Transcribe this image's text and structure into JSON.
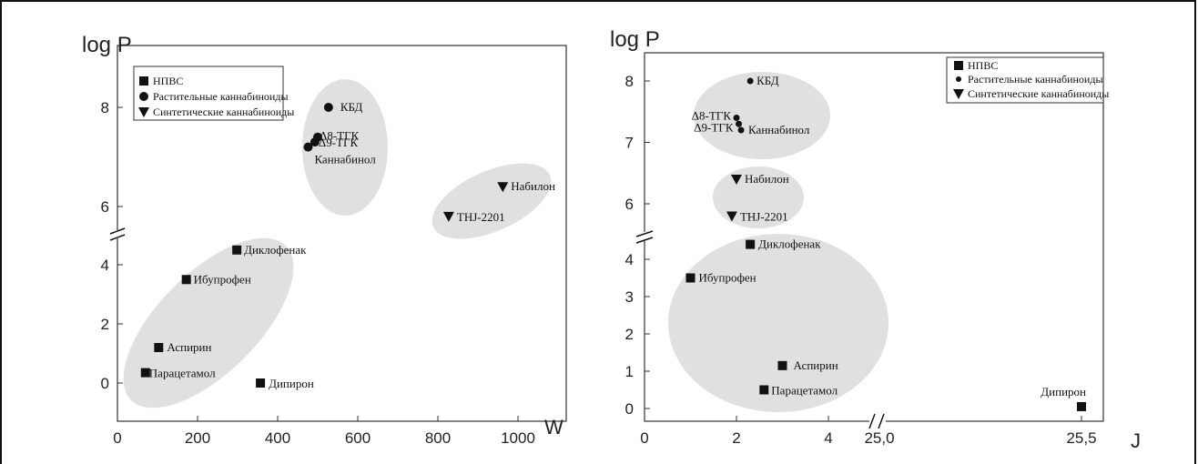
{
  "chart_data": [
    {
      "type": "scatter",
      "ylabel": "log P",
      "xlabel": "W",
      "xlim": [
        0,
        1100
      ],
      "x_ticks": [
        "0",
        "200",
        "400",
        "600",
        "800",
        "1000"
      ],
      "x_tick_values": [
        0,
        200,
        400,
        600,
        800,
        1000
      ],
      "y_ticks": [
        "0",
        "2",
        "4",
        "6",
        "8"
      ],
      "y_tick_values": [
        0,
        2,
        4,
        6,
        8
      ],
      "y_axis_break": true,
      "legend": [
        "НПВС",
        "Растительные каннабиноиды",
        "Синтетические каннабиноиды"
      ],
      "legend_position": "top-left",
      "points": [
        {
          "label": "Парацетамол",
          "x": 70,
          "y": 0.35,
          "group": "НПВС"
        },
        {
          "label": "Аспирин",
          "x": 103,
          "y": 1.2,
          "group": "НПВС"
        },
        {
          "label": "Ибупрофен",
          "x": 172,
          "y": 3.5,
          "group": "НПВС"
        },
        {
          "label": "Диклофенак",
          "x": 298,
          "y": 4.5,
          "group": "НПВС"
        },
        {
          "label": "Дипирон",
          "x": 357,
          "y": 0.0,
          "group": "НПВС"
        },
        {
          "label": "КБД",
          "x": 527,
          "y": 8.0,
          "group": "Растительные каннабиноиды"
        },
        {
          "label": "Δ8-ТГК",
          "x": 500,
          "y": 7.4,
          "group": "Растительные каннабиноиды"
        },
        {
          "label": "Δ9-ТГК",
          "x": 493,
          "y": 7.3,
          "group": "Растительные каннабиноиды"
        },
        {
          "label": "Каннабинол",
          "x": 476,
          "y": 7.2,
          "group": "Растительные каннабиноиды"
        },
        {
          "label": "Набилон",
          "x": 962,
          "y": 6.4,
          "group": "Синтетические каннабиноиды"
        },
        {
          "label": "THJ-2201",
          "x": 827,
          "y": 5.8,
          "group": "Синтетические каннабиноиды"
        }
      ]
    },
    {
      "type": "scatter",
      "ylabel": "log P",
      "xlabel": "J",
      "x_ticks": [
        "0",
        "2",
        "4",
        "25,0",
        "25,5"
      ],
      "x_axis_break": true,
      "y_ticks": [
        "0",
        "1",
        "2",
        "3",
        "4",
        "5",
        "6",
        "7",
        "8"
      ],
      "y_tick_values": [
        0,
        1,
        2,
        3,
        4,
        5,
        6,
        7,
        8
      ],
      "y_axis_break": true,
      "legend": [
        "НПВС",
        "Растительные каннабиноиды",
        "Синтетические каннабиноиды"
      ],
      "legend_position": "top-right",
      "points": [
        {
          "label": "Ибупрофен",
          "x": 1.0,
          "y": 3.5,
          "group": "НПВС"
        },
        {
          "label": "Диклофенак",
          "x": 2.3,
          "y": 4.4,
          "group": "НПВС"
        },
        {
          "label": "Аспирин",
          "x": 3.0,
          "y": 1.15,
          "group": "НПВС"
        },
        {
          "label": "Парацетамол",
          "x": 2.6,
          "y": 0.5,
          "group": "НПВС"
        },
        {
          "label": "Дипирон",
          "x": 25.5,
          "y": 0.05,
          "group": "НПВС"
        },
        {
          "label": "КБД",
          "x": 2.3,
          "y": 8.0,
          "group": "Растительные каннабиноиды"
        },
        {
          "label": "Δ8-ТГК",
          "x": 2.0,
          "y": 7.4,
          "group": "Растительные каннабиноиды"
        },
        {
          "label": "Δ9-ТГК",
          "x": 2.05,
          "y": 7.3,
          "group": "Растительные каннабиноиды"
        },
        {
          "label": "Каннабинол",
          "x": 2.1,
          "y": 7.2,
          "group": "Растительные каннабиноиды"
        },
        {
          "label": "Набилон",
          "x": 2.0,
          "y": 6.4,
          "group": "Синтетические каннабиноиды"
        },
        {
          "label": "THJ-2201",
          "x": 1.9,
          "y": 5.8,
          "group": "Синтетические каннабиноиды"
        }
      ]
    }
  ]
}
